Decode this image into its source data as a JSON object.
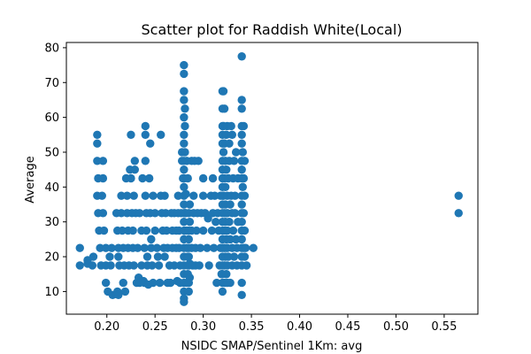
{
  "chart_data": {
    "type": "scatter",
    "title": "Scatter plot for Raddish White(Local)",
    "xlabel": "NSIDC SMAP/Sentinel 1Km: avg",
    "ylabel": "Average",
    "xlim": [
      0.158,
      0.585
    ],
    "ylim": [
      3.5,
      81.5
    ],
    "xticks": [
      0.2,
      0.25,
      0.3,
      0.35,
      0.4,
      0.45,
      0.5,
      0.55
    ],
    "xtick_labels": [
      "0.20",
      "0.25",
      "0.30",
      "0.35",
      "0.40",
      "0.45",
      "0.50",
      "0.55"
    ],
    "yticks": [
      10,
      20,
      30,
      40,
      50,
      60,
      70,
      80
    ],
    "ytick_labels": [
      "10",
      "20",
      "30",
      "40",
      "50",
      "60",
      "70",
      "80"
    ],
    "grid": false,
    "marker_color": "#1f77b4",
    "points": [
      [
        0.172,
        22.5
      ],
      [
        0.172,
        17.5
      ],
      [
        0.18,
        19
      ],
      [
        0.18,
        18
      ],
      [
        0.185,
        17.5
      ],
      [
        0.186,
        20
      ],
      [
        0.19,
        55
      ],
      [
        0.19,
        52.5
      ],
      [
        0.19,
        47.5
      ],
      [
        0.191,
        42.5
      ],
      [
        0.19,
        37.5
      ],
      [
        0.191,
        32.5
      ],
      [
        0.192,
        27.5
      ],
      [
        0.193,
        22.5
      ],
      [
        0.194,
        17.5
      ],
      [
        0.196,
        47.5
      ],
      [
        0.196,
        42.5
      ],
      [
        0.195,
        37.5
      ],
      [
        0.196,
        32.5
      ],
      [
        0.197,
        27.5
      ],
      [
        0.199,
        22.5
      ],
      [
        0.199,
        17.5
      ],
      [
        0.199,
        12.5
      ],
      [
        0.201,
        10
      ],
      [
        0.203,
        20
      ],
      [
        0.204,
        17.5
      ],
      [
        0.205,
        22.5
      ],
      [
        0.206,
        9
      ],
      [
        0.21,
        32.5
      ],
      [
        0.211,
        27.5
      ],
      [
        0.212,
        22.5
      ],
      [
        0.212,
        20
      ],
      [
        0.213,
        17.5
      ],
      [
        0.211,
        10
      ],
      [
        0.212,
        9
      ],
      [
        0.215,
        37.5
      ],
      [
        0.215,
        32.5
      ],
      [
        0.216,
        27.5
      ],
      [
        0.217,
        22.5
      ],
      [
        0.218,
        17.5
      ],
      [
        0.217,
        12.5
      ],
      [
        0.219,
        10
      ],
      [
        0.22,
        42.5
      ],
      [
        0.221,
        37.5
      ],
      [
        0.221,
        32.5
      ],
      [
        0.222,
        27.5
      ],
      [
        0.222,
        22.5
      ],
      [
        0.223,
        17.5
      ],
      [
        0.224,
        45
      ],
      [
        0.225,
        42.5
      ],
      [
        0.225,
        55
      ],
      [
        0.226,
        32.5
      ],
      [
        0.227,
        27.5
      ],
      [
        0.227,
        22.5
      ],
      [
        0.228,
        37.5
      ],
      [
        0.228,
        17.5
      ],
      [
        0.229,
        47.5
      ],
      [
        0.229,
        45
      ],
      [
        0.23,
        32.5
      ],
      [
        0.231,
        12.5
      ],
      [
        0.232,
        22.5
      ],
      [
        0.233,
        14
      ],
      [
        0.234,
        12.5
      ],
      [
        0.234,
        32.5
      ],
      [
        0.236,
        27.5
      ],
      [
        0.236,
        17.5
      ],
      [
        0.237,
        42.5
      ],
      [
        0.238,
        13
      ],
      [
        0.239,
        22.5
      ],
      [
        0.239,
        12.5
      ],
      [
        0.24,
        55
      ],
      [
        0.24,
        57.5
      ],
      [
        0.24,
        47.5
      ],
      [
        0.24,
        37.5
      ],
      [
        0.241,
        32.5
      ],
      [
        0.241,
        27.5
      ],
      [
        0.242,
        20
      ],
      [
        0.242,
        17.5
      ],
      [
        0.243,
        12
      ],
      [
        0.244,
        42.5
      ],
      [
        0.245,
        52.5
      ],
      [
        0.245,
        32.5
      ],
      [
        0.246,
        25
      ],
      [
        0.246,
        22.5
      ],
      [
        0.247,
        17.5
      ],
      [
        0.248,
        12.5
      ],
      [
        0.248,
        37.5
      ],
      [
        0.25,
        27.5
      ],
      [
        0.25,
        32.5
      ],
      [
        0.252,
        22.5
      ],
      [
        0.253,
        20
      ],
      [
        0.254,
        17.5
      ],
      [
        0.255,
        12.5
      ],
      [
        0.256,
        55
      ],
      [
        0.256,
        37.5
      ],
      [
        0.257,
        32.5
      ],
      [
        0.258,
        27.5
      ],
      [
        0.259,
        22.5
      ],
      [
        0.26,
        20
      ],
      [
        0.26,
        37.5
      ],
      [
        0.261,
        32.5
      ],
      [
        0.262,
        27.5
      ],
      [
        0.263,
        22.5
      ],
      [
        0.263,
        12.5
      ],
      [
        0.265,
        17.5
      ],
      [
        0.266,
        12.5
      ],
      [
        0.267,
        32.5
      ],
      [
        0.268,
        27.5
      ],
      [
        0.268,
        22.5
      ],
      [
        0.27,
        32.5
      ],
      [
        0.27,
        17.5
      ],
      [
        0.272,
        27.5
      ],
      [
        0.272,
        22.5
      ],
      [
        0.273,
        13
      ],
      [
        0.274,
        37.5
      ],
      [
        0.274,
        32.5
      ],
      [
        0.275,
        27.5
      ],
      [
        0.275,
        22.5
      ],
      [
        0.276,
        17.5
      ],
      [
        0.276,
        12.5
      ],
      [
        0.277,
        32.5
      ],
      [
        0.278,
        50
      ],
      [
        0.278,
        47.5
      ],
      [
        0.279,
        42.5
      ],
      [
        0.28,
        75
      ],
      [
        0.28,
        72.5
      ],
      [
        0.28,
        67.5
      ],
      [
        0.28,
        65
      ],
      [
        0.28,
        60
      ],
      [
        0.28,
        55
      ],
      [
        0.28,
        52.5
      ],
      [
        0.28,
        47.5
      ],
      [
        0.28,
        45
      ],
      [
        0.28,
        42.5
      ],
      [
        0.28,
        40
      ],
      [
        0.28,
        37.5
      ],
      [
        0.28,
        35
      ],
      [
        0.28,
        32.5
      ],
      [
        0.28,
        30
      ],
      [
        0.28,
        27.5
      ],
      [
        0.28,
        25
      ],
      [
        0.28,
        22.5
      ],
      [
        0.28,
        20
      ],
      [
        0.28,
        17.5
      ],
      [
        0.28,
        15
      ],
      [
        0.28,
        12.5
      ],
      [
        0.28,
        10
      ],
      [
        0.28,
        8
      ],
      [
        0.28,
        7
      ],
      [
        0.281,
        62.5
      ],
      [
        0.281,
        57.5
      ],
      [
        0.281,
        50
      ],
      [
        0.281,
        32.5
      ],
      [
        0.281,
        27.5
      ],
      [
        0.282,
        38
      ],
      [
        0.282,
        32.5
      ],
      [
        0.283,
        47.5
      ],
      [
        0.283,
        27.5
      ],
      [
        0.283,
        22.5
      ],
      [
        0.283,
        12.5
      ],
      [
        0.284,
        42.5
      ],
      [
        0.284,
        20
      ],
      [
        0.284,
        17.5
      ],
      [
        0.284,
        15
      ],
      [
        0.285,
        32.5
      ],
      [
        0.285,
        27.5
      ],
      [
        0.285,
        25
      ],
      [
        0.285,
        22.5
      ],
      [
        0.285,
        20
      ],
      [
        0.285,
        17.5
      ],
      [
        0.285,
        12.5
      ],
      [
        0.285,
        10
      ],
      [
        0.286,
        35
      ],
      [
        0.286,
        30
      ],
      [
        0.286,
        18
      ],
      [
        0.286,
        14
      ],
      [
        0.288,
        47.5
      ],
      [
        0.288,
        27.5
      ],
      [
        0.288,
        22.5
      ],
      [
        0.289,
        17.5
      ],
      [
        0.29,
        37.5
      ],
      [
        0.29,
        32.5
      ],
      [
        0.291,
        47.5
      ],
      [
        0.292,
        22.5
      ],
      [
        0.292,
        17.5
      ],
      [
        0.293,
        27.5
      ],
      [
        0.294,
        32.5
      ],
      [
        0.295,
        47.5
      ],
      [
        0.296,
        17.5
      ],
      [
        0.297,
        22.5
      ],
      [
        0.298,
        32.5
      ],
      [
        0.3,
        42.5
      ],
      [
        0.3,
        37.5
      ],
      [
        0.3,
        27.5
      ],
      [
        0.302,
        32.5
      ],
      [
        0.304,
        22.5
      ],
      [
        0.305,
        31
      ],
      [
        0.306,
        17.5
      ],
      [
        0.308,
        37.5
      ],
      [
        0.309,
        27.5
      ],
      [
        0.31,
        42.5
      ],
      [
        0.31,
        32.5
      ],
      [
        0.311,
        22.5
      ],
      [
        0.312,
        37.5
      ],
      [
        0.313,
        30
      ],
      [
        0.314,
        12.5
      ],
      [
        0.315,
        32.5
      ],
      [
        0.316,
        27.5
      ],
      [
        0.317,
        17.5
      ],
      [
        0.318,
        37.5
      ],
      [
        0.318,
        22.5
      ],
      [
        0.319,
        15
      ],
      [
        0.32,
        67.5
      ],
      [
        0.32,
        62.5
      ],
      [
        0.32,
        57.5
      ],
      [
        0.32,
        55
      ],
      [
        0.32,
        52.5
      ],
      [
        0.32,
        47.5
      ],
      [
        0.32,
        45
      ],
      [
        0.32,
        42.5
      ],
      [
        0.32,
        40
      ],
      [
        0.32,
        37.5
      ],
      [
        0.32,
        35
      ],
      [
        0.32,
        32.5
      ],
      [
        0.32,
        30
      ],
      [
        0.32,
        27.5
      ],
      [
        0.32,
        25
      ],
      [
        0.32,
        22.5
      ],
      [
        0.32,
        20
      ],
      [
        0.32,
        17.5
      ],
      [
        0.32,
        15
      ],
      [
        0.32,
        12.5
      ],
      [
        0.32,
        10
      ],
      [
        0.321,
        67.5
      ],
      [
        0.321,
        57.5
      ],
      [
        0.321,
        50
      ],
      [
        0.321,
        37.5
      ],
      [
        0.322,
        62.5
      ],
      [
        0.322,
        52.5
      ],
      [
        0.322,
        42.5
      ],
      [
        0.322,
        32.5
      ],
      [
        0.322,
        27.5
      ],
      [
        0.322,
        22.5
      ],
      [
        0.322,
        17.5
      ],
      [
        0.322,
        12.5
      ],
      [
        0.323,
        47.5
      ],
      [
        0.323,
        40
      ],
      [
        0.323,
        35
      ],
      [
        0.323,
        30
      ],
      [
        0.323,
        20
      ],
      [
        0.324,
        55
      ],
      [
        0.324,
        45
      ],
      [
        0.324,
        25
      ],
      [
        0.324,
        15
      ],
      [
        0.325,
        57.5
      ],
      [
        0.325,
        37.5
      ],
      [
        0.325,
        32.5
      ],
      [
        0.325,
        27.5
      ],
      [
        0.325,
        22.5
      ],
      [
        0.325,
        17.5
      ],
      [
        0.325,
        12.5
      ],
      [
        0.326,
        42.5
      ],
      [
        0.326,
        20
      ],
      [
        0.327,
        52.5
      ],
      [
        0.327,
        47.5
      ],
      [
        0.327,
        30
      ],
      [
        0.328,
        35
      ],
      [
        0.328,
        25
      ],
      [
        0.328,
        12.5
      ],
      [
        0.329,
        57.5
      ],
      [
        0.329,
        37.5
      ],
      [
        0.33,
        55
      ],
      [
        0.33,
        32.5
      ],
      [
        0.33,
        22.5
      ],
      [
        0.33,
        17.5
      ],
      [
        0.331,
        42.5
      ],
      [
        0.331,
        27.5
      ],
      [
        0.332,
        47.5
      ],
      [
        0.332,
        20
      ],
      [
        0.333,
        32.5
      ],
      [
        0.333,
        37.5
      ],
      [
        0.334,
        50
      ],
      [
        0.334,
        25
      ],
      [
        0.335,
        22.5
      ],
      [
        0.335,
        17.5
      ],
      [
        0.336,
        42.5
      ],
      [
        0.336,
        30
      ],
      [
        0.34,
        77.5
      ],
      [
        0.34,
        65
      ],
      [
        0.34,
        62.5
      ],
      [
        0.34,
        57.5
      ],
      [
        0.34,
        55
      ],
      [
        0.34,
        52.5
      ],
      [
        0.34,
        47.5
      ],
      [
        0.34,
        45
      ],
      [
        0.34,
        42.5
      ],
      [
        0.34,
        37.5
      ],
      [
        0.34,
        35
      ],
      [
        0.34,
        32.5
      ],
      [
        0.34,
        30
      ],
      [
        0.34,
        27.5
      ],
      [
        0.34,
        25
      ],
      [
        0.34,
        22.5
      ],
      [
        0.34,
        20
      ],
      [
        0.34,
        17.5
      ],
      [
        0.34,
        12.5
      ],
      [
        0.34,
        9
      ],
      [
        0.341,
        50
      ],
      [
        0.341,
        40
      ],
      [
        0.342,
        57.5
      ],
      [
        0.342,
        42.5
      ],
      [
        0.342,
        32.5
      ],
      [
        0.342,
        22.5
      ],
      [
        0.343,
        47.5
      ],
      [
        0.343,
        37.5
      ],
      [
        0.343,
        27.5
      ],
      [
        0.343,
        20
      ],
      [
        0.344,
        22.5
      ],
      [
        0.345,
        17.5
      ],
      [
        0.352,
        22.5
      ],
      [
        0.565,
        37.5
      ],
      [
        0.565,
        32.5
      ]
    ]
  }
}
